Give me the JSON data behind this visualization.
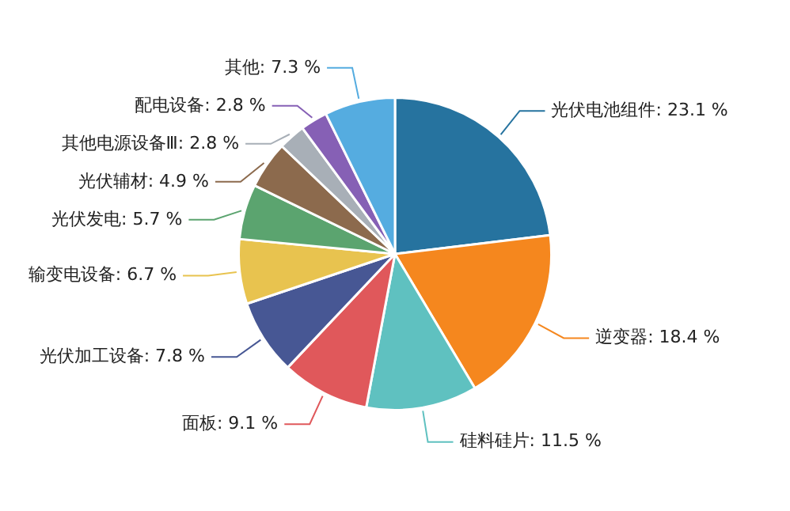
{
  "chart_data": {
    "type": "pie",
    "categories": [
      "光伏电池组件",
      "逆变器",
      "硅料硅片",
      "面板",
      "光伏加工设备",
      "输变电设备",
      "光伏发电",
      "光伏辅材",
      "其他电源设备Ⅲ",
      "配电设备",
      "其他"
    ],
    "values": [
      23.1,
      18.4,
      11.5,
      9.1,
      7.8,
      6.7,
      5.7,
      4.9,
      2.8,
      2.8,
      7.3
    ],
    "value_labels": [
      "23.1 %",
      "18.4 %",
      "11.5 %",
      "9.1 %",
      "7.8 %",
      "6.7 %",
      "5.7 %",
      "4.9 %",
      "2.8 %",
      "2.8 %",
      "7.3 %"
    ],
    "colors": [
      "#26739f",
      "#f5871e",
      "#5fc1c0",
      "#e0585b",
      "#475794",
      "#e8c34f",
      "#5ba46f",
      "#8c6a4d",
      "#a8afb7",
      "#8660b5",
      "#55ace0"
    ],
    "legend": false
  }
}
